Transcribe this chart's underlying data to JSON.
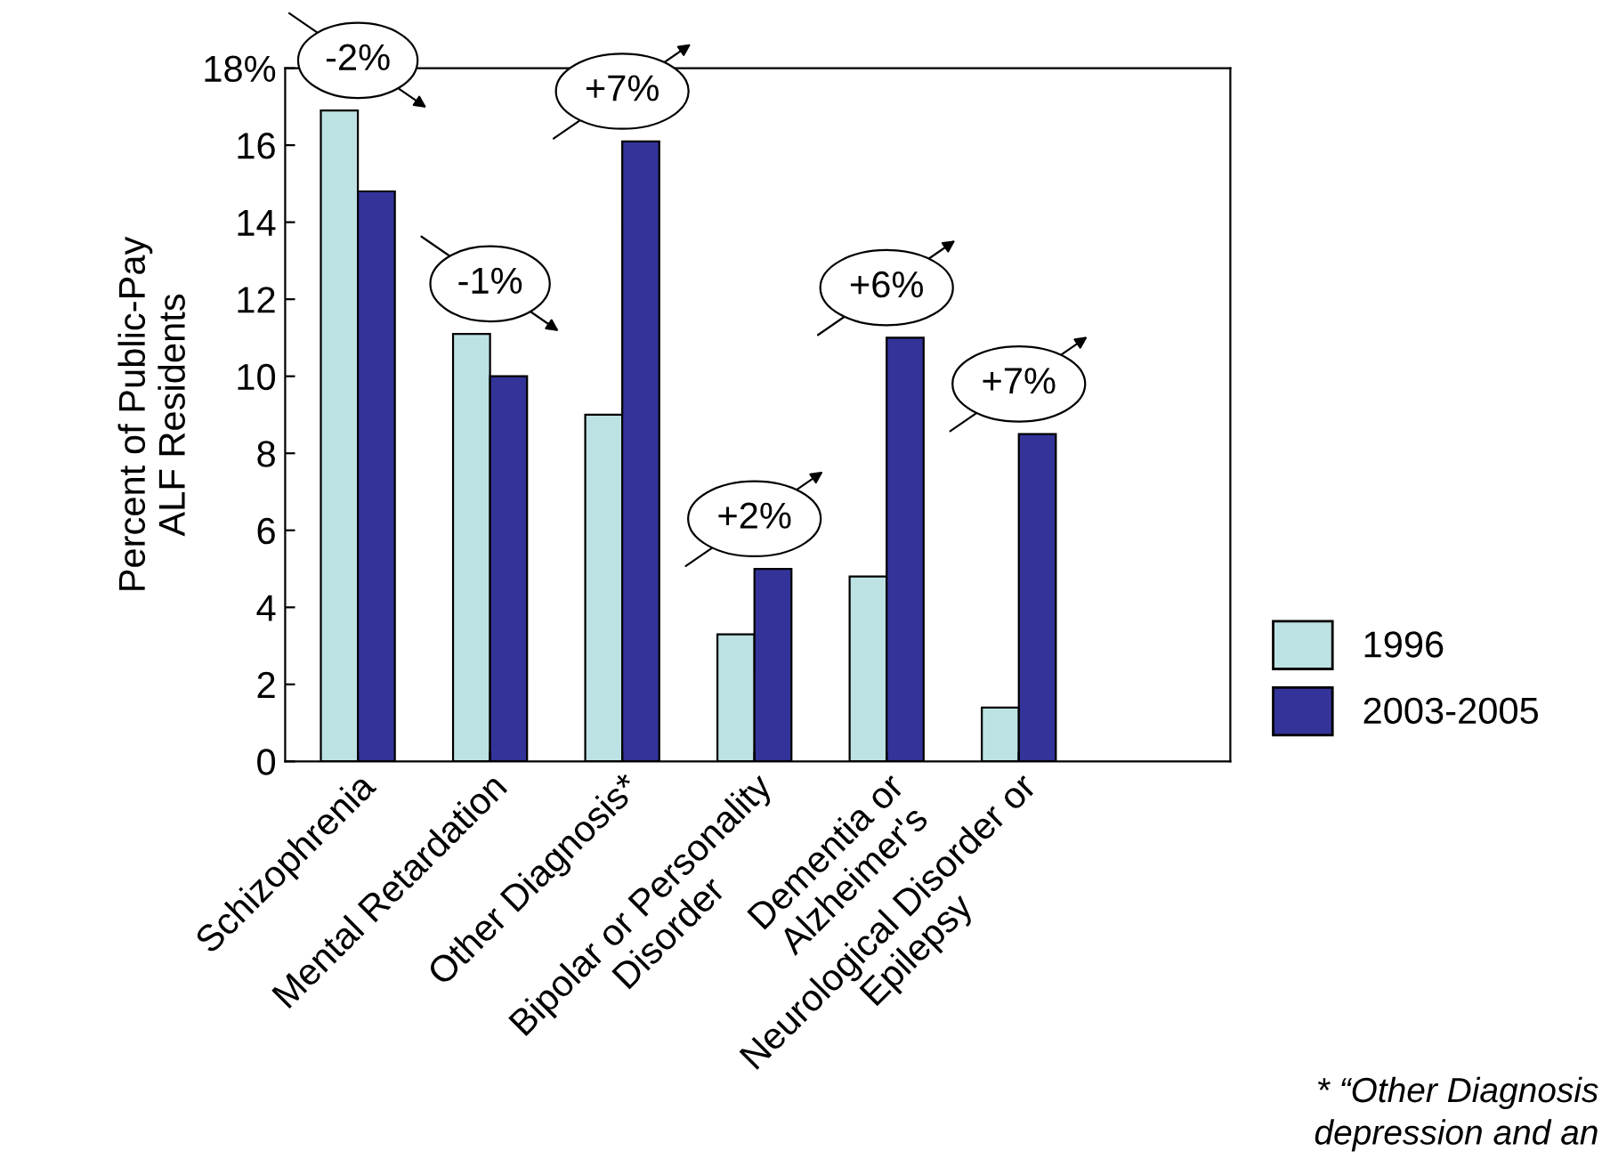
{
  "chart_data": {
    "type": "bar",
    "ylabel": "Percent of Public-Pay\nALF Residents",
    "categories": [
      "Schizophrenia",
      "Mental Retardation",
      "Other Diagnosis*",
      "Bipolar or Personality\nDisorder",
      "Dementia or\nAlzheimer's",
      "Neurological Disorder or\nEpilepsy"
    ],
    "series": [
      {
        "name": "1996",
        "color": "#bde2e3",
        "values": [
          16.9,
          11.1,
          9.0,
          3.3,
          4.8,
          1.4
        ]
      },
      {
        "name": "2003-2005",
        "color": "#333399",
        "values": [
          14.8,
          10.0,
          16.1,
          5.0,
          11.0,
          8.5
        ]
      }
    ],
    "ylim": [
      0,
      18
    ],
    "yticks": [
      0,
      2,
      4,
      6,
      8,
      10,
      12,
      14,
      16,
      {
        "value": 18,
        "label": "18%"
      }
    ],
    "grid": false,
    "legend": "right",
    "annotations": [
      "-2%",
      "-1%",
      "+7%",
      "+2%",
      "+6%",
      "+7%",
      "* “Other Diagnosis\ndepression and an"
    ]
  }
}
